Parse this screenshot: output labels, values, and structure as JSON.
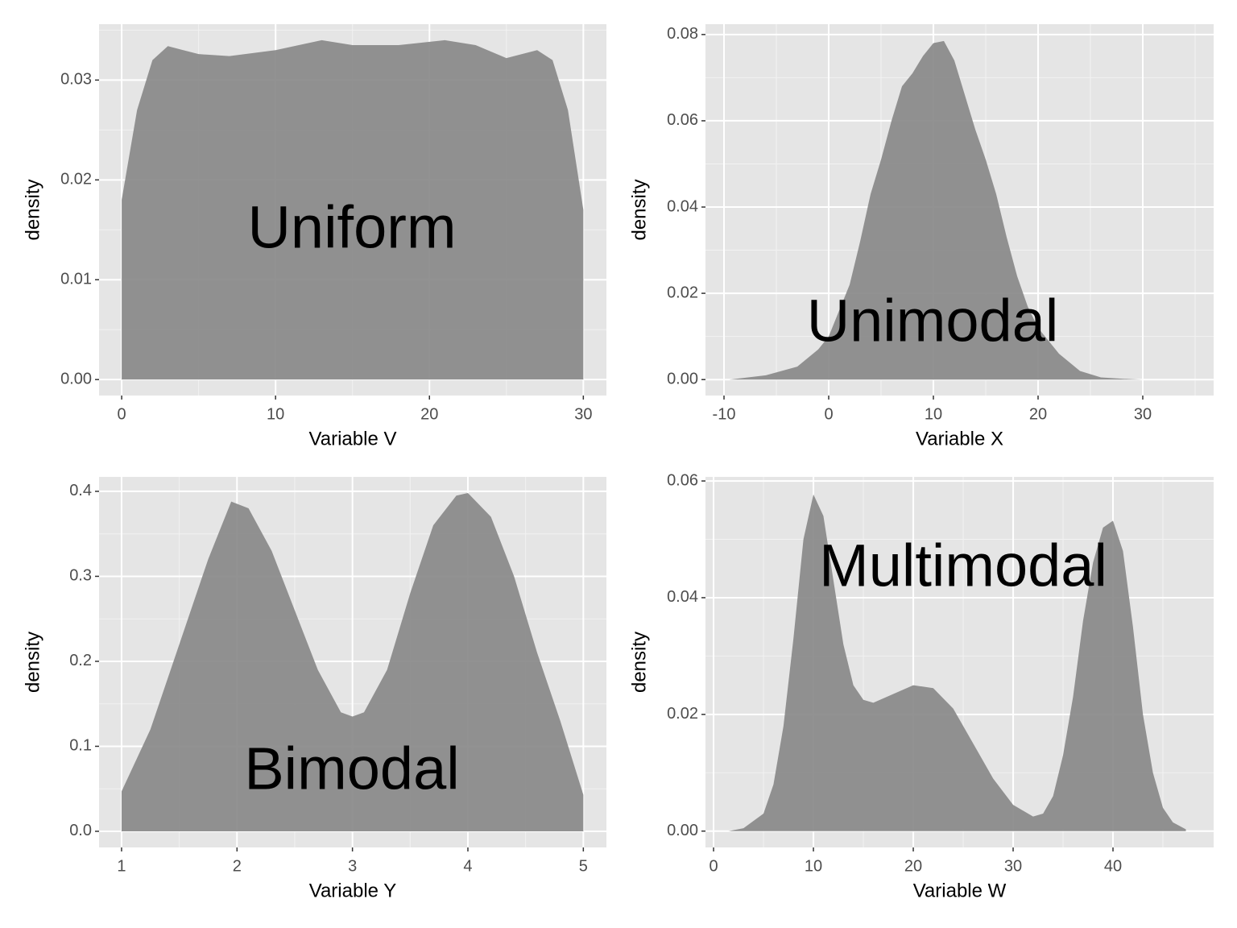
{
  "chart_data": [
    {
      "type": "area",
      "annotation": "Uniform",
      "xlabel": "Variable V",
      "ylabel": "density",
      "color": "#898989",
      "background": "#e5e5e5",
      "grid": true,
      "x": [
        0,
        1,
        2,
        3,
        4,
        5,
        7,
        10,
        13,
        15,
        18,
        21,
        23,
        25,
        27,
        28,
        29,
        30
      ],
      "values": [
        0.018,
        0.027,
        0.032,
        0.0334,
        0.033,
        0.0326,
        0.0324,
        0.033,
        0.034,
        0.0335,
        0.0335,
        0.034,
        0.0335,
        0.0322,
        0.033,
        0.032,
        0.027,
        0.017
      ],
      "xlim": [
        -1.47,
        31.5
      ],
      "ylim": [
        -0.0016,
        0.0356
      ],
      "xticks": [
        0,
        10,
        20,
        30
      ],
      "yticks": [
        {
          "value": 0,
          "label": "0.00"
        },
        0.01,
        0.02,
        0.03
      ],
      "x_minor_ticks": [
        5,
        15,
        25
      ],
      "y_minor_ticks": [
        0.005,
        0.015,
        0.025,
        0.035
      ]
    },
    {
      "type": "area",
      "annotation": "Unimodal",
      "xlabel": "Variable X",
      "ylabel": "density",
      "color": "#898989",
      "background": "#e5e5e5",
      "grid": true,
      "x": [
        -9.5,
        -6,
        -3,
        -1,
        0,
        1,
        2,
        3,
        4,
        5,
        6,
        7,
        8,
        9,
        10,
        11,
        12,
        13,
        14,
        15,
        16,
        17,
        18,
        19,
        20,
        22,
        24,
        26,
        28,
        30,
        34.5
      ],
      "values": [
        0,
        0.001,
        0.003,
        0.007,
        0.01,
        0.016,
        0.022,
        0.032,
        0.043,
        0.051,
        0.06,
        0.068,
        0.071,
        0.075,
        0.078,
        0.0785,
        0.074,
        0.066,
        0.058,
        0.051,
        0.043,
        0.033,
        0.024,
        0.017,
        0.012,
        0.006,
        0.002,
        0.0005,
        0.0002,
        0,
        0
      ],
      "xlim": [
        -11.77,
        36.77
      ],
      "ylim": [
        -0.0037,
        0.0824
      ],
      "xticks": [
        -10,
        0,
        10,
        20,
        30
      ],
      "yticks": [
        {
          "value": 0,
          "label": "0.00"
        },
        0.02,
        0.04,
        0.06,
        0.08
      ],
      "x_minor_ticks": [
        -5,
        5,
        15,
        25,
        35
      ],
      "y_minor_ticks": [
        0.01,
        0.03,
        0.05,
        0.07
      ]
    },
    {
      "type": "area",
      "annotation": "Bimodal",
      "xlabel": "Variable Y",
      "ylabel": "density",
      "color": "#898989",
      "background": "#e5e5e5",
      "grid": true,
      "x": [
        1,
        1.25,
        1.5,
        1.75,
        1.95,
        2.1,
        2.3,
        2.5,
        2.7,
        2.9,
        3,
        3.1,
        3.3,
        3.5,
        3.7,
        3.9,
        4,
        4.2,
        4.4,
        4.6,
        4.8,
        5
      ],
      "values": [
        0.047,
        0.12,
        0.22,
        0.32,
        0.388,
        0.38,
        0.33,
        0.26,
        0.19,
        0.14,
        0.135,
        0.14,
        0.19,
        0.28,
        0.36,
        0.395,
        0.398,
        0.37,
        0.3,
        0.21,
        0.13,
        0.043
      ],
      "xlim": [
        0.805,
        5.2
      ],
      "ylim": [
        -0.019,
        0.417
      ],
      "xticks": [
        1,
        2,
        3,
        4,
        5
      ],
      "yticks": [
        {
          "value": 0,
          "label": "0.0"
        },
        0.1,
        0.2,
        0.3,
        0.4
      ],
      "x_minor_ticks": [
        1.5,
        2.5,
        3.5,
        4.5
      ],
      "y_minor_ticks": [
        0.05,
        0.15,
        0.25,
        0.35
      ]
    },
    {
      "type": "area",
      "annotation": "Multimodal",
      "xlabel": "Variable W",
      "ylabel": "density",
      "color": "#898989",
      "background": "#e5e5e5",
      "grid": true,
      "x": [
        1.5,
        3,
        5,
        6,
        7,
        8,
        9,
        10,
        11,
        12,
        13,
        14,
        15,
        16,
        18,
        20,
        22,
        24,
        26,
        28,
        30,
        32,
        33,
        34,
        35,
        36,
        37,
        38,
        39,
        40,
        41,
        42,
        43,
        44,
        45,
        46,
        47.3
      ],
      "values": [
        0,
        0.0005,
        0.003,
        0.008,
        0.018,
        0.033,
        0.05,
        0.0577,
        0.054,
        0.043,
        0.032,
        0.025,
        0.0225,
        0.022,
        0.0235,
        0.025,
        0.0245,
        0.021,
        0.015,
        0.009,
        0.0045,
        0.0025,
        0.003,
        0.006,
        0.013,
        0.023,
        0.036,
        0.046,
        0.052,
        0.0532,
        0.048,
        0.035,
        0.02,
        0.01,
        0.004,
        0.0015,
        0.0003
      ],
      "xlim": [
        -0.81,
        50.08
      ],
      "ylim": [
        -0.0028,
        0.0607
      ],
      "xticks": [
        0,
        10,
        20,
        30,
        40
      ],
      "yticks": [
        {
          "value": 0,
          "label": "0.00"
        },
        0.02,
        0.04,
        0.06
      ],
      "x_minor_ticks": [
        5,
        15,
        25,
        35,
        45
      ],
      "y_minor_ticks": [
        0.01,
        0.03,
        0.05
      ]
    }
  ]
}
